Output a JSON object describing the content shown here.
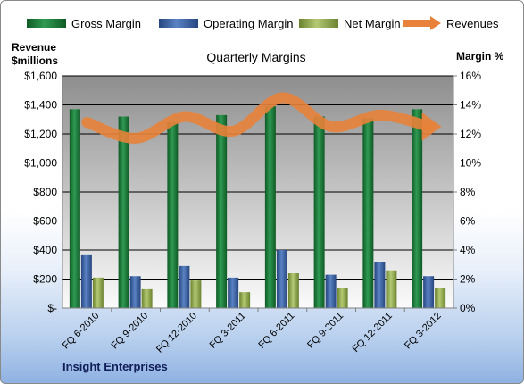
{
  "chart_data": {
    "type": "bar",
    "title": "Quarterly Margins",
    "company": "Insight Enterprises",
    "categories": [
      "FQ 6-2010",
      "FQ 9-2010",
      "FQ 12-2010",
      "FQ 3-2011",
      "FQ 6-2011",
      "FQ 9-2011",
      "FQ 12-2011",
      "FQ 3-2012"
    ],
    "y_left": {
      "label_line1": "Revenue",
      "label_line2": "$millions",
      "min": 0,
      "max": 1600,
      "step": 200,
      "tick_labels": [
        "$-",
        "$200",
        "$400",
        "$600",
        "$800",
        "$1,000",
        "$1,200",
        "$1,400",
        "$1,600"
      ]
    },
    "y_right": {
      "label": "Margin %",
      "min": 0,
      "max": 16,
      "step": 2,
      "tick_labels": [
        "0%",
        "2%",
        "4%",
        "6%",
        "8%",
        "10%",
        "12%",
        "14%",
        "16%"
      ]
    },
    "series": [
      {
        "name": "Gross Margin",
        "kind": "bar",
        "axis": "right",
        "color": "#1e7a3c",
        "values": [
          13.7,
          13.2,
          12.8,
          13.3,
          13.9,
          13.2,
          13.1,
          13.7
        ]
      },
      {
        "name": "Operating Margin",
        "kind": "bar",
        "axis": "right",
        "color": "#3d65a8",
        "values": [
          3.7,
          2.2,
          2.9,
          2.1,
          4.0,
          2.3,
          3.2,
          2.2
        ]
      },
      {
        "name": "Net Margin",
        "kind": "bar",
        "axis": "right",
        "color": "#93ad4e",
        "values": [
          2.1,
          1.3,
          1.9,
          1.1,
          2.4,
          1.4,
          2.6,
          1.4
        ]
      },
      {
        "name": "Revenues",
        "kind": "line",
        "axis": "left",
        "color": "#e8823a",
        "values": [
          1280,
          1170,
          1320,
          1220,
          1450,
          1250,
          1330,
          1250
        ]
      }
    ],
    "legend_position": "top",
    "grid": true
  }
}
